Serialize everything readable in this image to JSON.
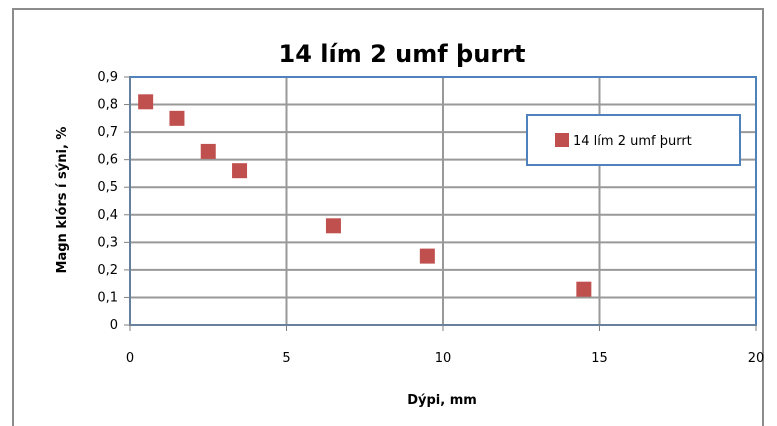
{
  "chart_data": {
    "type": "scatter",
    "title": "14 lím 2 umf þurrt",
    "xlabel": "Dýpi, mm",
    "ylabel": "Magn klórs í sýni, %",
    "xlim": [
      0,
      20
    ],
    "ylim": [
      0,
      0.9
    ],
    "x_ticks": [
      0,
      5,
      10,
      15,
      20
    ],
    "x_tick_labels": [
      "0",
      "5",
      "10",
      "15",
      "20"
    ],
    "y_ticks": [
      0,
      0.1,
      0.2,
      0.3,
      0.4,
      0.5,
      0.6,
      0.7,
      0.8,
      0.9
    ],
    "y_tick_labels": [
      "0",
      "0,1",
      "0,2",
      "0,3",
      "0,4",
      "0,5",
      "0,6",
      "0,7",
      "0,8",
      "0,9"
    ],
    "grid": true,
    "legend_position": "right",
    "series": [
      {
        "name": "14 lím 2 umf þurrt",
        "color": "#c0504d",
        "marker": "square",
        "points": [
          {
            "x": 0.5,
            "y": 0.81
          },
          {
            "x": 1.5,
            "y": 0.75
          },
          {
            "x": 2.5,
            "y": 0.63
          },
          {
            "x": 3.5,
            "y": 0.56
          },
          {
            "x": 6.5,
            "y": 0.36
          },
          {
            "x": 9.5,
            "y": 0.25
          },
          {
            "x": 14.5,
            "y": 0.13
          }
        ]
      }
    ],
    "colors": {
      "plot_border": "#4f81bd",
      "grid": "#999999",
      "frame": "#8c8c8c",
      "legend_border": "#4f81bd"
    }
  }
}
